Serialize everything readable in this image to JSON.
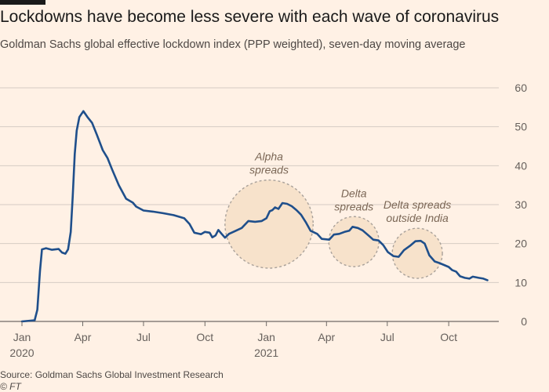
{
  "header": {
    "title": "Lockdowns have become less severe with each wave of coronavirus",
    "subtitle": "Goldman Sachs global effective lockdown index (PPP weighted), seven-day moving average"
  },
  "footer": {
    "source": "Source: Goldman Sachs Global Investment Research",
    "credit": "© FT"
  },
  "colors": {
    "background": "#fff1e5",
    "line": "#1f4f8b",
    "grid": "#d6ccc3",
    "annotation_text": "#7a6655",
    "circle_fill": "#f7e2cb",
    "circle_stroke": "#a9a19a"
  },
  "chart_data": {
    "type": "line",
    "title": "Lockdowns have become less severe with each wave of coronavirus",
    "subtitle": "Goldman Sachs global effective lockdown index (PPP weighted), seven-day moving average",
    "xlabel": "",
    "ylabel": "",
    "ylim": [
      0,
      60
    ],
    "y_ticks": [
      0,
      10,
      20,
      30,
      40,
      50,
      60
    ],
    "y_axis_position": "right",
    "grid": true,
    "x_tick_labels": [
      {
        "date": "2020-01-01",
        "label": "Jan",
        "sublabel": "2020"
      },
      {
        "date": "2020-04-01",
        "label": "Apr"
      },
      {
        "date": "2020-07-01",
        "label": "Jul"
      },
      {
        "date": "2020-10-01",
        "label": "Oct"
      },
      {
        "date": "2021-01-01",
        "label": "Jan",
        "sublabel": "2021"
      },
      {
        "date": "2021-04-01",
        "label": "Apr"
      },
      {
        "date": "2021-07-01",
        "label": "Jul"
      },
      {
        "date": "2021-10-01",
        "label": "Oct"
      }
    ],
    "series": [
      {
        "points": [
          [
            "2020-01-01",
            0
          ],
          [
            "2020-01-20",
            0.3
          ],
          [
            "2020-01-24",
            3
          ],
          [
            "2020-01-28",
            13
          ],
          [
            "2020-01-31",
            18.5
          ],
          [
            "2020-02-06",
            18.8
          ],
          [
            "2020-02-15",
            18.4
          ],
          [
            "2020-02-25",
            18.6
          ],
          [
            "2020-03-01",
            17.7
          ],
          [
            "2020-03-06",
            17.4
          ],
          [
            "2020-03-10",
            18.5
          ],
          [
            "2020-03-14",
            23
          ],
          [
            "2020-03-17",
            32
          ],
          [
            "2020-03-20",
            43
          ],
          [
            "2020-03-23",
            49
          ],
          [
            "2020-03-27",
            52.5
          ],
          [
            "2020-04-02",
            54
          ],
          [
            "2020-04-08",
            52.5
          ],
          [
            "2020-04-15",
            51
          ],
          [
            "2020-04-22",
            48
          ],
          [
            "2020-05-01",
            44
          ],
          [
            "2020-05-08",
            42
          ],
          [
            "2020-05-15",
            39
          ],
          [
            "2020-05-25",
            35
          ],
          [
            "2020-06-05",
            31.5
          ],
          [
            "2020-06-15",
            30.5
          ],
          [
            "2020-06-20",
            29.5
          ],
          [
            "2020-07-01",
            28.5
          ],
          [
            "2020-07-15",
            28.2
          ],
          [
            "2020-07-30",
            27.8
          ],
          [
            "2020-08-15",
            27.3
          ],
          [
            "2020-08-31",
            26.5
          ],
          [
            "2020-09-08",
            25
          ],
          [
            "2020-09-15",
            22.8
          ],
          [
            "2020-09-25",
            22.4
          ],
          [
            "2020-10-01",
            23
          ],
          [
            "2020-10-08",
            22.8
          ],
          [
            "2020-10-12",
            21.6
          ],
          [
            "2020-10-17",
            22.1
          ],
          [
            "2020-10-21",
            23.5
          ],
          [
            "2020-10-26",
            22.5
          ],
          [
            "2020-10-31",
            21.5
          ],
          [
            "2020-11-06",
            22.5
          ],
          [
            "2020-11-15",
            23.2
          ],
          [
            "2020-11-25",
            24
          ],
          [
            "2020-12-05",
            25.8
          ],
          [
            "2020-12-15",
            25.6
          ],
          [
            "2020-12-25",
            25.8
          ],
          [
            "2021-01-01",
            26.5
          ],
          [
            "2021-01-06",
            28.3
          ],
          [
            "2021-01-10",
            28.6
          ],
          [
            "2021-01-14",
            29.3
          ],
          [
            "2021-01-19",
            28.9
          ],
          [
            "2021-01-25",
            30.4
          ],
          [
            "2021-02-01",
            30.2
          ],
          [
            "2021-02-08",
            29.6
          ],
          [
            "2021-02-15",
            28.6
          ],
          [
            "2021-02-22",
            27.4
          ],
          [
            "2021-03-01",
            25.5
          ],
          [
            "2021-03-08",
            23.3
          ],
          [
            "2021-03-18",
            22.5
          ],
          [
            "2021-03-25",
            21.2
          ],
          [
            "2021-04-05",
            21
          ],
          [
            "2021-04-12",
            22.3
          ],
          [
            "2021-04-20",
            22.5
          ],
          [
            "2021-04-28",
            23
          ],
          [
            "2021-05-05",
            23.3
          ],
          [
            "2021-05-10",
            24.3
          ],
          [
            "2021-05-18",
            24
          ],
          [
            "2021-05-25",
            23.4
          ],
          [
            "2021-06-02",
            22.2
          ],
          [
            "2021-06-10",
            21
          ],
          [
            "2021-06-18",
            20.8
          ],
          [
            "2021-06-25",
            19.6
          ],
          [
            "2021-07-02",
            17.8
          ],
          [
            "2021-07-10",
            16.8
          ],
          [
            "2021-07-18",
            16.6
          ],
          [
            "2021-07-26",
            18.3
          ],
          [
            "2021-08-04",
            19.4
          ],
          [
            "2021-08-12",
            20.6
          ],
          [
            "2021-08-20",
            20.7
          ],
          [
            "2021-08-26",
            20
          ],
          [
            "2021-09-02",
            17
          ],
          [
            "2021-09-10",
            15.4
          ],
          [
            "2021-09-17",
            15
          ],
          [
            "2021-09-24",
            14.5
          ],
          [
            "2021-10-01",
            14
          ],
          [
            "2021-10-06",
            13.2
          ],
          [
            "2021-10-12",
            12.8
          ],
          [
            "2021-10-18",
            11.6
          ],
          [
            "2021-10-25",
            11.2
          ],
          [
            "2021-11-01",
            11
          ],
          [
            "2021-11-06",
            11.5
          ],
          [
            "2021-11-15",
            11.2
          ],
          [
            "2021-11-22",
            11
          ],
          [
            "2021-11-28",
            10.6
          ]
        ]
      }
    ],
    "annotations": [
      {
        "lines": [
          "Alpha",
          "spreads"
        ],
        "center": [
          "2021-01-05",
          25
        ],
        "radius_months": 2.2
      },
      {
        "lines": [
          "Delta",
          "spreads"
        ],
        "center": [
          "2021-05-12",
          20.5
        ],
        "radius_months": 1.25
      },
      {
        "lines": [
          "Delta spreads",
          "outside India"
        ],
        "center": [
          "2021-08-15",
          17.5
        ],
        "radius_months": 1.25
      }
    ]
  }
}
